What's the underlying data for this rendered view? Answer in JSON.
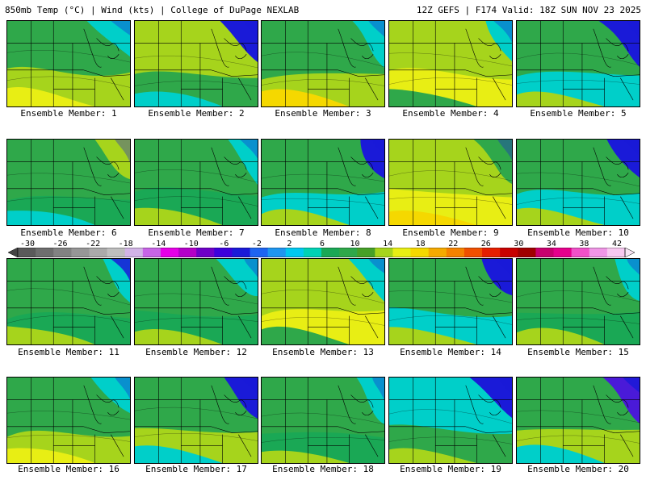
{
  "header": {
    "left_title": "850mb Temp (°C) | Wind (kts) | College of DuPage NEXLAB",
    "right_title": "12Z GEFS | F174 Valid: 18Z SUN NOV 23 2025"
  },
  "members": [
    {
      "label": "Ensemble Member: 1",
      "palette": [
        "#2fa84a",
        "#a6d41c",
        "#e8ee14",
        "#00cfc9"
      ]
    },
    {
      "label": "Ensemble Member: 2",
      "palette": [
        "#a6d41c",
        "#2fa84a",
        "#00cfc9",
        "#1a1ad8"
      ]
    },
    {
      "label": "Ensemble Member: 3",
      "palette": [
        "#2fa84a",
        "#a6d41c",
        "#f5d800",
        "#00cfc9"
      ]
    },
    {
      "label": "Ensemble Member: 4",
      "palette": [
        "#a6d41c",
        "#e8ee14",
        "#2fa84a",
        "#00cfc9"
      ]
    },
    {
      "label": "Ensemble Member: 5",
      "palette": [
        "#2fa84a",
        "#00cfc9",
        "#a6d41c",
        "#1a1ad8"
      ]
    },
    {
      "label": "Ensemble Member: 6",
      "palette": [
        "#2fa84a",
        "#1aa855",
        "#00cfc9",
        "#a6d41c"
      ]
    },
    {
      "label": "Ensemble Member: 7",
      "palette": [
        "#2fa84a",
        "#1aa855",
        "#a6d41c",
        "#00cfc9"
      ]
    },
    {
      "label": "Ensemble Member: 8",
      "palette": [
        "#2fa84a",
        "#00cfc9",
        "#a6d41c",
        "#1a1ad8"
      ]
    },
    {
      "label": "Ensemble Member: 9",
      "palette": [
        "#a6d41c",
        "#e8ee14",
        "#f5d800",
        "#2fa84a"
      ]
    },
    {
      "label": "Ensemble Member: 10",
      "palette": [
        "#2fa84a",
        "#00cfc9",
        "#a6d41c",
        "#1a1ad8"
      ]
    },
    {
      "label": "Ensemble Member: 11",
      "palette": [
        "#2fa84a",
        "#1aa855",
        "#a6d41c",
        "#00cfc9"
      ]
    },
    {
      "label": "Ensemble Member: 12",
      "palette": [
        "#2fa84a",
        "#1aa855",
        "#a6d41c",
        "#00cfc9"
      ]
    },
    {
      "label": "Ensemble Member: 13",
      "palette": [
        "#a6d41c",
        "#e8ee14",
        "#2fa84a",
        "#00cfc9"
      ]
    },
    {
      "label": "Ensemble Member: 14",
      "palette": [
        "#2fa84a",
        "#00cfc9",
        "#a6d41c",
        "#1a1ad8"
      ]
    },
    {
      "label": "Ensemble Member: 15",
      "palette": [
        "#2fa84a",
        "#1aa855",
        "#a6d41c",
        "#00cfc9"
      ]
    },
    {
      "label": "Ensemble Member: 16",
      "palette": [
        "#2fa84a",
        "#a6d41c",
        "#e8ee14",
        "#00cfc9"
      ]
    },
    {
      "label": "Ensemble Member: 17",
      "palette": [
        "#2fa84a",
        "#a6d41c",
        "#00cfc9",
        "#1a1ad8"
      ]
    },
    {
      "label": "Ensemble Member: 18",
      "palette": [
        "#2fa84a",
        "#1aa855",
        "#a6d41c",
        "#00cfc9"
      ]
    },
    {
      "label": "Ensemble Member: 19",
      "palette": [
        "#00cfc9",
        "#2fa84a",
        "#a6d41c",
        "#1a1ad8"
      ]
    },
    {
      "label": "Ensemble Member: 20",
      "palette": [
        "#2fa84a",
        "#a6d41c",
        "#00cfc9",
        "#4a1ad8"
      ]
    }
  ],
  "colorbar": {
    "labels": [
      "-30",
      "-26",
      "-22",
      "-18",
      "-14",
      "-10",
      "-6",
      "-2",
      "2",
      "6",
      "10",
      "14",
      "18",
      "22",
      "26",
      "30",
      "34",
      "38",
      "42"
    ],
    "colors": [
      "#5a5a5a",
      "#6e6e6e",
      "#828282",
      "#969696",
      "#aaaaaa",
      "#bebebe",
      "#d2b4e6",
      "#c864e6",
      "#e600e6",
      "#b400c8",
      "#6e00c8",
      "#3c00dc",
      "#1a1ad8",
      "#1e64f0",
      "#1e96f0",
      "#00c8f0",
      "#00d2b4",
      "#1aa855",
      "#2fa84a",
      "#46a028",
      "#a6d41c",
      "#e8ee14",
      "#f5d800",
      "#f5aa00",
      "#f58200",
      "#f05000",
      "#e61e00",
      "#c80000",
      "#a00000",
      "#c8006e",
      "#e6008c",
      "#f050c8",
      "#f096e6",
      "#f8c8f0"
    ]
  }
}
